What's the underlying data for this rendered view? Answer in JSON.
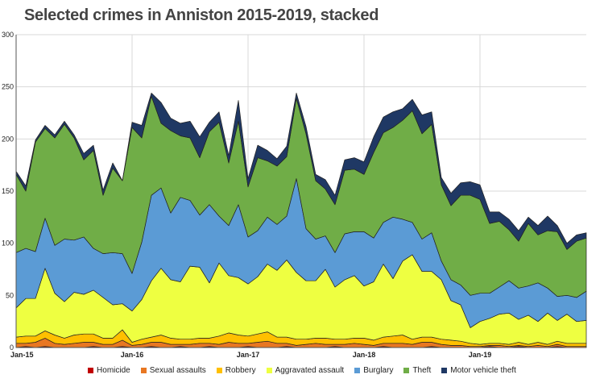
{
  "chart_data": {
    "type": "area",
    "stacked": true,
    "title": "Selected crimes in Anniston 2015-2019, stacked",
    "ylim": [
      0,
      300
    ],
    "yticks": [
      0,
      50,
      100,
      150,
      200,
      250,
      300
    ],
    "xtick_labels": [
      {
        "index": 0,
        "label": "Jan-15"
      },
      {
        "index": 12,
        "label": "Jan-16"
      },
      {
        "index": 24,
        "label": "Jan-17"
      },
      {
        "index": 36,
        "label": "Jan-18"
      },
      {
        "index": 48,
        "label": "Jan-19"
      }
    ],
    "grid": "y",
    "legend_position": "bottom",
    "x": [
      "Jan-15",
      "Feb-15",
      "Mar-15",
      "Apr-15",
      "May-15",
      "Jun-15",
      "Jul-15",
      "Aug-15",
      "Sep-15",
      "Oct-15",
      "Nov-15",
      "Dec-15",
      "Jan-16",
      "Feb-16",
      "Mar-16",
      "Apr-16",
      "May-16",
      "Jun-16",
      "Jul-16",
      "Aug-16",
      "Sep-16",
      "Oct-16",
      "Nov-16",
      "Dec-16",
      "Jan-17",
      "Feb-17",
      "Mar-17",
      "Apr-17",
      "May-17",
      "Jun-17",
      "Jul-17",
      "Aug-17",
      "Sep-17",
      "Oct-17",
      "Nov-17",
      "Dec-17",
      "Jan-18",
      "Feb-18",
      "Mar-18",
      "Apr-18",
      "May-18",
      "Jun-18",
      "Jul-18",
      "Aug-18",
      "Sep-18",
      "Oct-18",
      "Nov-18",
      "Dec-18",
      "Jan-19",
      "Feb-19",
      "Mar-19",
      "Apr-19",
      "May-19",
      "Jun-19",
      "Jul-19",
      "Aug-19",
      "Sep-19",
      "Oct-19",
      "Nov-19",
      "Dec-19"
    ],
    "series": [
      {
        "name": "Homicide",
        "color": "#c00000",
        "values": [
          0,
          1,
          0,
          1,
          0,
          0,
          0,
          0,
          1,
          0,
          0,
          1,
          0,
          0,
          1,
          0,
          0,
          1,
          0,
          0,
          1,
          0,
          0,
          0,
          1,
          0,
          0,
          0,
          1,
          0,
          0,
          0,
          0,
          1,
          0,
          0,
          0,
          0,
          1,
          0,
          0,
          0,
          0,
          1,
          0,
          0,
          0,
          0,
          0,
          1,
          0,
          0,
          1,
          0,
          0,
          0,
          1,
          0,
          0,
          0
        ]
      },
      {
        "name": "Sexual assaults",
        "color": "#e87722",
        "values": [
          4,
          3,
          5,
          8,
          4,
          3,
          4,
          5,
          4,
          3,
          3,
          6,
          2,
          3,
          4,
          5,
          3,
          2,
          3,
          4,
          3,
          3,
          5,
          4,
          3,
          5,
          6,
          4,
          3,
          2,
          3,
          4,
          3,
          2,
          3,
          4,
          3,
          2,
          3,
          4,
          4,
          3,
          5,
          4,
          3,
          2,
          2,
          1,
          1,
          1,
          2,
          1,
          1,
          1,
          2,
          1,
          2,
          1,
          1,
          1
        ]
      },
      {
        "name": "Robbery",
        "color": "#ffc000",
        "values": [
          6,
          7,
          6,
          7,
          8,
          6,
          8,
          8,
          8,
          6,
          6,
          10,
          3,
          5,
          5,
          7,
          6,
          5,
          5,
          5,
          5,
          8,
          9,
          8,
          7,
          8,
          9,
          6,
          6,
          6,
          5,
          5,
          6,
          5,
          5,
          5,
          6,
          5,
          6,
          7,
          8,
          5,
          5,
          5,
          5,
          5,
          4,
          3,
          2,
          2,
          2,
          2,
          3,
          2,
          3,
          2,
          3,
          3,
          3,
          3
        ]
      },
      {
        "name": "Aggravated assault",
        "color": "#eeff41",
        "values": [
          28,
          36,
          36,
          60,
          40,
          35,
          41,
          38,
          42,
          39,
          32,
          25,
          30,
          38,
          54,
          64,
          56,
          55,
          70,
          68,
          53,
          70,
          55,
          55,
          50,
          55,
          65,
          64,
          74,
          64,
          56,
          55,
          66,
          50,
          57,
          60,
          50,
          56,
          70,
          55,
          71,
          81,
          63,
          63,
          57,
          38,
          35,
          15,
          22,
          24,
          28,
          30,
          22,
          28,
          20,
          30,
          20,
          28,
          21,
          22
        ]
      },
      {
        "name": "Burglary",
        "color": "#5b9bd5",
        "values": [
          53,
          48,
          45,
          48,
          46,
          60,
          50,
          55,
          40,
          42,
          50,
          48,
          36,
          55,
          82,
          77,
          64,
          81,
          63,
          50,
          75,
          45,
          48,
          70,
          45,
          44,
          45,
          44,
          42,
          90,
          50,
          40,
          32,
          33,
          44,
          42,
          52,
          42,
          40,
          59,
          40,
          31,
          31,
          37,
          18,
          20,
          19,
          31,
          27,
          24,
          26,
          31,
          30,
          28,
          37,
          24,
          23,
          18,
          23,
          28
        ]
      },
      {
        "name": "Theft",
        "color": "#70ad47",
        "values": [
          75,
          55,
          105,
          86,
          103,
          110,
          98,
          74,
          94,
          56,
          81,
          70,
          140,
          100,
          95,
          62,
          79,
          59,
          60,
          55,
          70,
          90,
          60,
          80,
          48,
          70,
          54,
          56,
          57,
          77,
          91,
          56,
          45,
          46,
          61,
          60,
          55,
          82,
          86,
          86,
          95,
          107,
          101,
          104,
          73,
          71,
          86,
          96,
          90,
          67,
          63,
          49,
          45,
          60,
          46,
          55,
          62,
          44,
          54,
          51
        ]
      },
      {
        "name": "Motor vehicle theft",
        "color": "#1f3864",
        "values": [
          3,
          5,
          2,
          3,
          3,
          3,
          3,
          6,
          5,
          5,
          5,
          0,
          5,
          12,
          3,
          20,
          12,
          12,
          16,
          20,
          9,
          10,
          7,
          20,
          8,
          12,
          10,
          7,
          10,
          5,
          7,
          6,
          9,
          9,
          10,
          11,
          12,
          15,
          15,
          15,
          11,
          11,
          18,
          12,
          7,
          12,
          12,
          13,
          14,
          11,
          9,
          10,
          10,
          6,
          9,
          14,
          6,
          6,
          6,
          5
        ]
      }
    ]
  }
}
